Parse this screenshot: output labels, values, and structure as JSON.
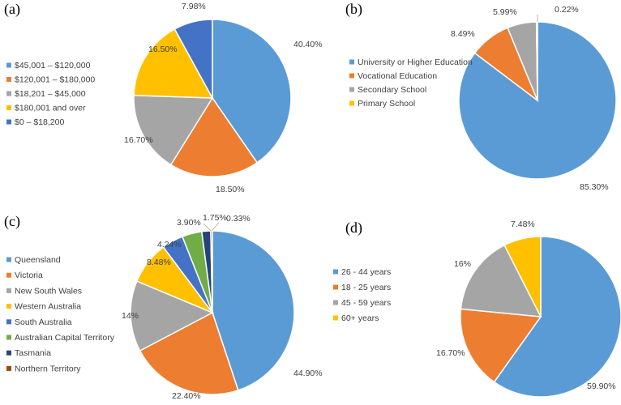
{
  "chart_data": [
    {
      "type": "pie",
      "panel": "(a)",
      "categories": [
        "$45,001 – $120,000",
        "$120,001 – $180,000",
        "$18,201 – $45,000",
        "$180,001 and over",
        "$0 – $18,200"
      ],
      "values": [
        40.4,
        18.5,
        16.7,
        16.5,
        7.98
      ],
      "labels": [
        "40.40%",
        "18.50%",
        "16.70%",
        "16.50%",
        "7.98%"
      ],
      "colors": [
        "#5b9bd5",
        "#ed7d31",
        "#a5a5a5",
        "#ffc000",
        "#4472c4"
      ],
      "legend": "left"
    },
    {
      "type": "pie",
      "panel": "(b)",
      "categories": [
        "University or Higher Education",
        "Vocational Education",
        "Secondary School",
        "Primary School"
      ],
      "values": [
        85.3,
        8.49,
        5.99,
        0.22
      ],
      "labels": [
        "85.30%",
        "8.49%",
        "5.99%",
        "0.22%"
      ],
      "colors": [
        "#5b9bd5",
        "#ed7d31",
        "#a5a5a5",
        "#ffc000"
      ],
      "legend": "left"
    },
    {
      "type": "pie",
      "panel": "(c)",
      "categories": [
        "Queensland",
        "Victoria",
        "New South Wales",
        "Western Australia",
        "South Australia",
        "Australian Capital Territory",
        "Tasmania",
        "Northern Territory"
      ],
      "values": [
        44.9,
        22.4,
        14,
        8.48,
        4.24,
        3.9,
        1.75,
        0.33
      ],
      "labels": [
        "44.90%",
        "22.40%",
        "14%",
        "8.48%",
        "4.24%",
        "3.90%",
        "1.75%",
        "0.33%"
      ],
      "colors": [
        "#5b9bd5",
        "#ed7d31",
        "#a5a5a5",
        "#ffc000",
        "#4472c4",
        "#70ad47",
        "#264478",
        "#9e480e"
      ],
      "legend": "left"
    },
    {
      "type": "pie",
      "panel": "(d)",
      "categories": [
        "26 - 44 years",
        "18 - 25 years",
        "45 - 59 years",
        "60+ years"
      ],
      "values": [
        59.9,
        16.7,
        16,
        7.48
      ],
      "labels": [
        "59.90%",
        "16.70%",
        "16%",
        "7.48%"
      ],
      "colors": [
        "#5b9bd5",
        "#ed7d31",
        "#a5a5a5",
        "#ffc000"
      ],
      "legend": "left"
    }
  ]
}
